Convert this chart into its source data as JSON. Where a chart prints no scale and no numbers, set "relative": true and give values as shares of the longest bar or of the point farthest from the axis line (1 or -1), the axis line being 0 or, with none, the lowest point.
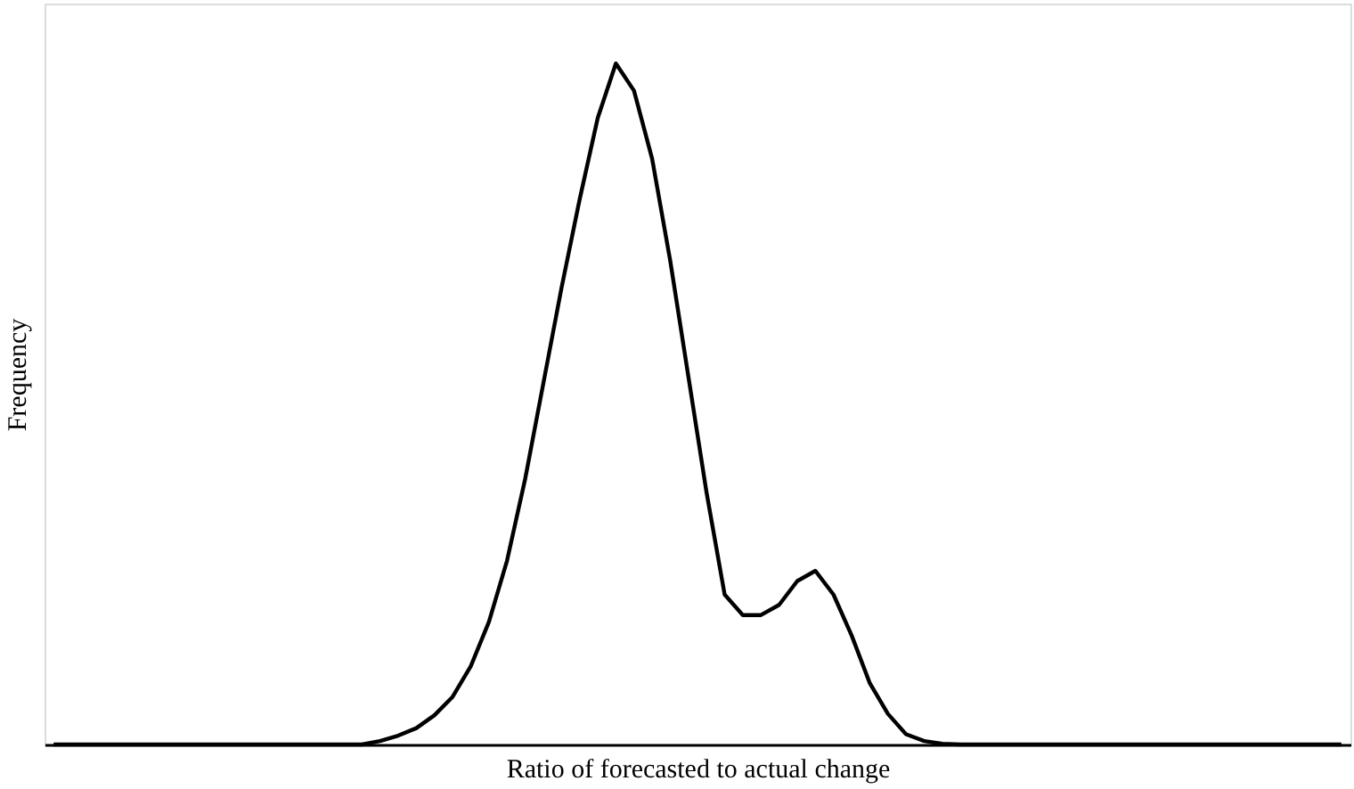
{
  "chart_data": {
    "type": "line",
    "relative": true,
    "xlabel": "Ratio of forecasted to actual change",
    "ylabel": "Frequency",
    "grid": false,
    "tick_labels": false,
    "marker": "none",
    "line_style": "solid",
    "categories": [
      null,
      null,
      null,
      null,
      null,
      null,
      null,
      null,
      null,
      null,
      null,
      null,
      null,
      null,
      null,
      null,
      null,
      null,
      null,
      null,
      null,
      null,
      null,
      null,
      null,
      null,
      null,
      null,
      null,
      null,
      null,
      null,
      null,
      null,
      null,
      null,
      null,
      null,
      null,
      null,
      null,
      null,
      null,
      null,
      null,
      null,
      null,
      null,
      null,
      null,
      null,
      null,
      null,
      null,
      null,
      null,
      null,
      null,
      null,
      null,
      null,
      null,
      null,
      null,
      null,
      null,
      null,
      null,
      null,
      null,
      null,
      null
    ],
    "series": [
      {
        "color": "#000000",
        "values": [
          0,
          0,
          0,
          0,
          0,
          0,
          0,
          0,
          0,
          0,
          0,
          0,
          0,
          0,
          0,
          0,
          0,
          0,
          0.005,
          0.013,
          0.024,
          0.043,
          0.07,
          0.115,
          0.18,
          0.27,
          0.39,
          0.53,
          0.67,
          0.8,
          0.92,
          1.0,
          0.96,
          0.86,
          0.71,
          0.54,
          0.37,
          0.22,
          0.19,
          0.19,
          0.205,
          0.24,
          0.255,
          0.22,
          0.16,
          0.09,
          0.045,
          0.015,
          0.005,
          0.001,
          0,
          0,
          0,
          0,
          0,
          0,
          0,
          0,
          0,
          0,
          0,
          0,
          0,
          0,
          0,
          0,
          0,
          0,
          0,
          0,
          0,
          0
        ]
      }
    ]
  }
}
